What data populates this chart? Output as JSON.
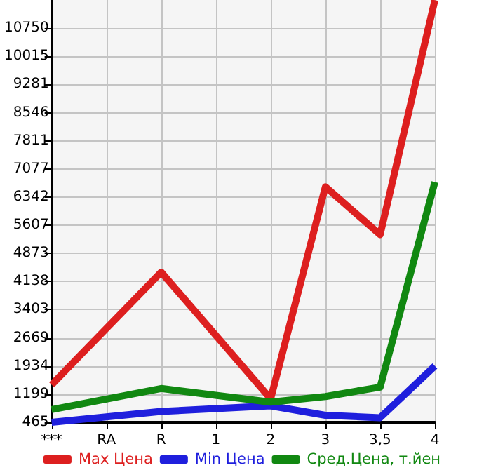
{
  "chart_data": {
    "type": "line",
    "categories": [
      "***",
      "RA",
      "R",
      "1",
      "2",
      "3",
      "3,5",
      "4"
    ],
    "series": [
      {
        "name": "Max Цена",
        "color": "#dd1f1f",
        "values": [
          1446,
          null,
          4384,
          null,
          1078,
          6610,
          5362,
          11480
        ]
      },
      {
        "name": "Min Цена",
        "color": "#1f1fdd",
        "values": [
          465,
          null,
          747,
          null,
          895,
          649,
          586,
          1934
        ]
      },
      {
        "name": "Сред.Цена, т.йен",
        "color": "#118811",
        "values": [
          796,
          null,
          1347,
          null,
          990,
          1137,
          1383,
          6734
        ]
      }
    ],
    "ylim": [
      465,
      11484
    ],
    "yticks": [
      465,
      1199,
      1934,
      2669,
      3403,
      4138,
      4873,
      5607,
      6342,
      7077,
      7811,
      8546,
      9281,
      10015,
      10750
    ],
    "grid": true,
    "legend": "bottom",
    "marker": "none",
    "line_style": "solid"
  }
}
